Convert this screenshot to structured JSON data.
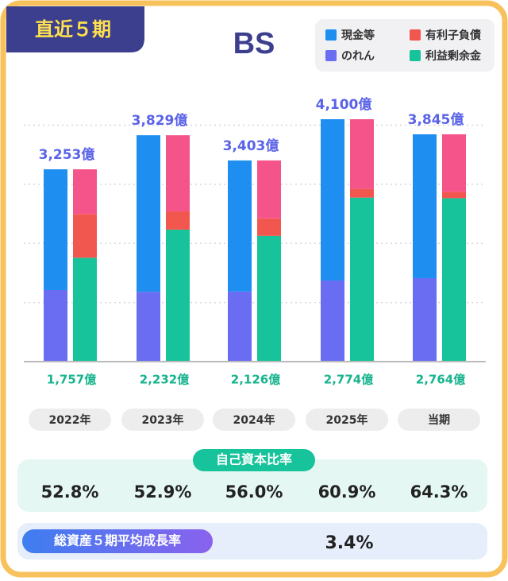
{
  "badge": "直近５期",
  "chart_data": {
    "type": "bar",
    "title": "BS",
    "categories": [
      "2022年",
      "2023年",
      "2024年",
      "2025年",
      "当期"
    ],
    "series": [
      {
        "name": "現金等",
        "color": "#1e8ef0",
        "values": [
          2043,
          2648,
          2218,
          2728,
          2433
        ]
      },
      {
        "name": "のれん",
        "color": "#6a6cf2",
        "values": [
          1210,
          1181,
          1185,
          1372,
          1412
        ]
      },
      {
        "name": "有利子負債",
        "color": "#f2574f",
        "values": [
          739,
          309,
          296,
          148,
          108
        ]
      },
      {
        "name": "利益剰余金",
        "color": "#17c39a",
        "values": [
          1757,
          2232,
          2126,
          2774,
          2764
        ],
        "value_labels": [
          "1,757億",
          "2,232億",
          "2,126億",
          "2,774億",
          "2,764億"
        ]
      },
      {
        "color": "#f5548a",
        "values": [
          757,
          1288,
          981,
          1178,
          973
        ]
      }
    ],
    "totals": {
      "values": [
        3253,
        3829,
        3403,
        4100,
        3845
      ],
      "value_labels": [
        "3,253億",
        "3,829億",
        "3,403億",
        "4,100億",
        "3,845億"
      ]
    },
    "ylim": [
      0,
      4100
    ],
    "yticks": [
      1000,
      2000,
      3000,
      4000
    ],
    "grid": true
  },
  "equity_ratio": {
    "title": "自己資本比率",
    "values": [
      52.8,
      52.9,
      56.0,
      60.9,
      64.3
    ],
    "value_labels": [
      "52.8%",
      "52.9%",
      "56.0%",
      "60.9%",
      "64.3%"
    ]
  },
  "growth": {
    "title": "総資産５期平均成長率",
    "value": 3.4,
    "value_label": "3.4%"
  }
}
